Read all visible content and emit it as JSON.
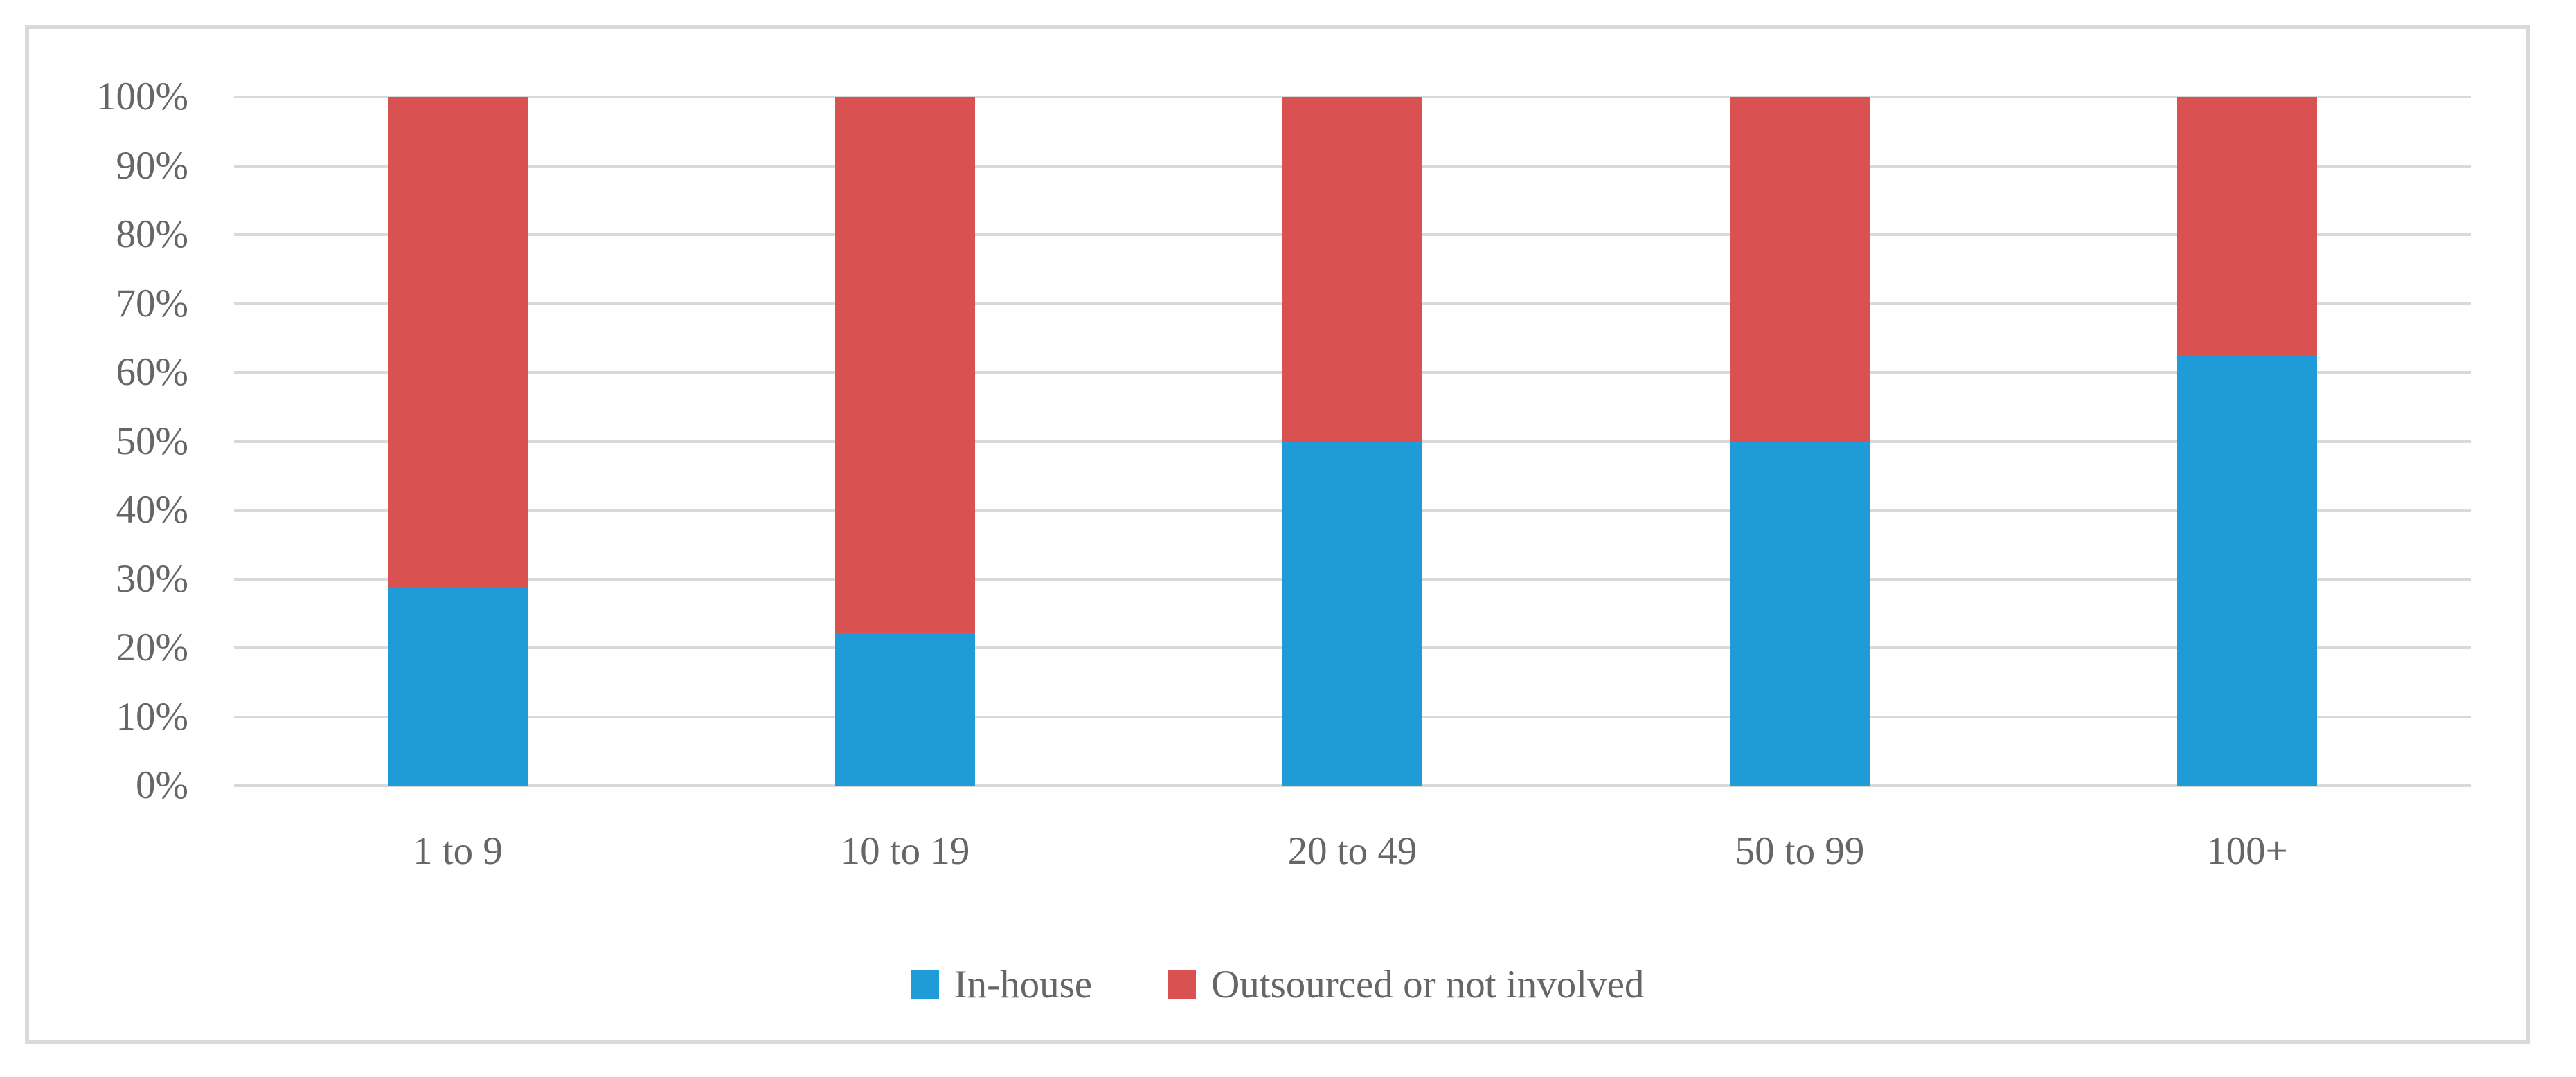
{
  "chart_data": {
    "type": "bar",
    "stacked": true,
    "stack_mode": "percent",
    "title": "",
    "xlabel": "",
    "ylabel": "",
    "categories": [
      "1 to 9",
      "10 to 19",
      "20 to 49",
      "50 to 99",
      "100+"
    ],
    "series": [
      {
        "name": "In-house",
        "color": "#1F9CD8",
        "values": [
          28.6,
          22.2,
          50.0,
          50.0,
          62.5
        ]
      },
      {
        "name": "Outsourced or not involved",
        "color": "#D95151",
        "values": [
          71.4,
          77.8,
          50.0,
          50.0,
          37.5
        ]
      }
    ],
    "y_axis": {
      "min": 0,
      "max": 100,
      "step": 10,
      "tick_labels": [
        "0%",
        "10%",
        "20%",
        "30%",
        "40%",
        "50%",
        "60%",
        "70%",
        "80%",
        "90%",
        "100%"
      ]
    },
    "grid": true,
    "legend_position": "bottom"
  },
  "colors": {
    "in_house": "#1F9CD8",
    "outsourced": "#D95151",
    "gridline": "#D9D9D9",
    "figure_border": "#D9D9D9",
    "axis_text": "#666666",
    "background": "#FFFFFF"
  }
}
